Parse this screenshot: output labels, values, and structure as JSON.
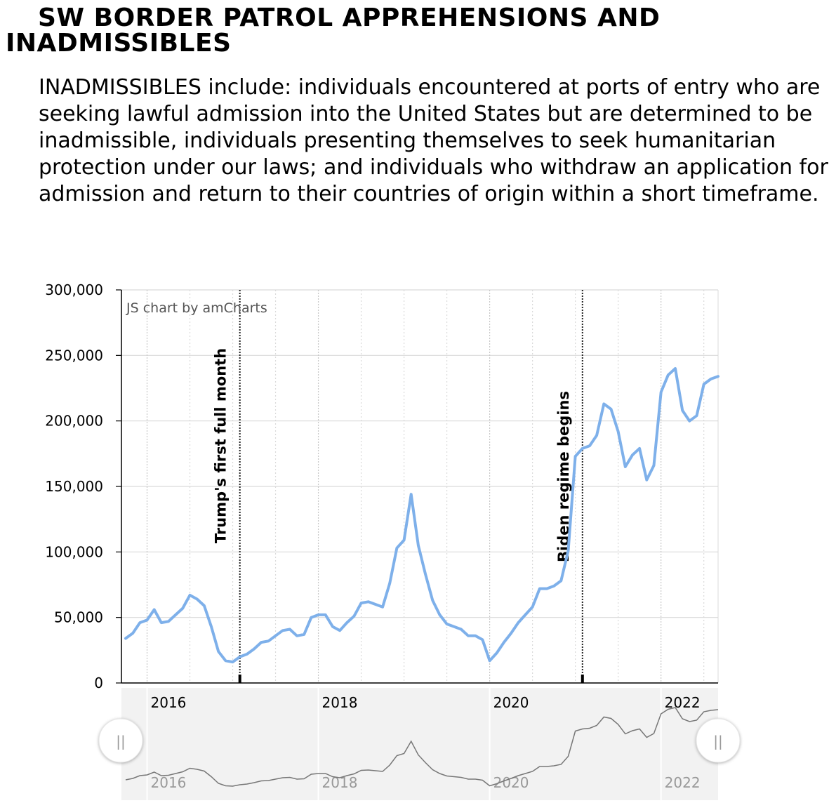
{
  "page": {
    "title": "SW BORDER PATROL APPREHENSIONS AND INADMISSIBLES",
    "description": "INADMISSIBLES include: individuals encountered at ports of entry who are seeking lawful admission into the United States but are determined to be inadmissible, individuals presenting themselves to seek humanitarian protection under our laws; and individuals who withdraw an application for admission and return to their countries of origin within a short timeframe."
  },
  "chart_data": {
    "type": "line",
    "credit": "JS chart by amCharts",
    "x_start": "2015-10",
    "x_interval": "month",
    "ylim": [
      0,
      300000
    ],
    "y_ticks": [
      0,
      50000,
      100000,
      150000,
      200000,
      250000,
      300000
    ],
    "y_tick_labels": [
      "0",
      "50,000",
      "100,000",
      "150,000",
      "200,000",
      "250,000",
      "300,000"
    ],
    "x_tick_labels": [
      "2016",
      "2018",
      "2020",
      "2022"
    ],
    "x_tick_dates": [
      "2016-01",
      "2018-01",
      "2020-01",
      "2022-01"
    ],
    "grid": true,
    "line_color": "#7eb0ea",
    "annotations": [
      {
        "date": "2017-02",
        "label": "Trump's first full month"
      },
      {
        "date": "2021-02",
        "label": "Biden regime begins"
      }
    ],
    "series": [
      {
        "values": [
          34000,
          38000,
          46000,
          48000,
          56000,
          46000,
          47000,
          52000,
          57000,
          67000,
          64000,
          59000,
          43000,
          24000,
          17000,
          16000,
          20000,
          22000,
          26000,
          31000,
          32000,
          36000,
          40000,
          41000,
          36000,
          37000,
          50000,
          52000,
          52000,
          43000,
          40000,
          46000,
          51000,
          61000,
          62000,
          60000,
          58000,
          76000,
          103000,
          109000,
          144000,
          105000,
          83000,
          63000,
          52000,
          45000,
          43000,
          41000,
          36000,
          36000,
          33000,
          17000,
          23000,
          31000,
          38000,
          46000,
          52000,
          58000,
          72000,
          72000,
          74000,
          78000,
          101000,
          173000,
          179000,
          181000,
          189000,
          213000,
          209000,
          192000,
          165000,
          174000,
          179000,
          155000,
          166000,
          222000,
          235000,
          240000,
          208000,
          200000,
          204000,
          228000,
          232000,
          234000
        ]
      }
    ]
  },
  "scrollbar": {
    "labels": [
      "2016",
      "2018",
      "2020",
      "2022"
    ],
    "left_grip": "||",
    "right_grip": "||"
  }
}
